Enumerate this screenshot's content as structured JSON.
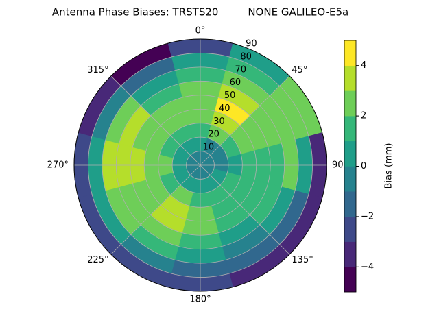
{
  "chart_data": {
    "type": "polar_contour",
    "title": "Antenna Phase Biases: TRSTS20         NONE GALILEO-E5a",
    "colorbar_label": "Bias (mm)",
    "theta_direction": "clockwise",
    "theta_zero": "N",
    "theta_bins": [
      -15,
      15,
      45,
      75,
      105,
      135,
      165,
      195,
      225,
      255,
      285,
      315,
      345
    ],
    "r_bins": [
      0,
      10,
      20,
      30,
      40,
      50,
      60,
      70,
      80,
      90
    ],
    "values": [
      [
        -0.5,
        -0.5,
        -0.5,
        -0.5,
        -0.5,
        -0.5,
        -0.5,
        -0.5,
        -0.5,
        -0.5,
        -0.5,
        -0.5
      ],
      [
        0.5,
        -0.5,
        -0.5,
        -0.5,
        0.5,
        0.5,
        0.5,
        0.5,
        0.5,
        0.5,
        0.5,
        0.5
      ],
      [
        1.5,
        2.5,
        1.5,
        0.5,
        1.5,
        1.5,
        1.5,
        2.5,
        1.5,
        2.5,
        1.5,
        1.5
      ],
      [
        2.5,
        3.5,
        2.5,
        1.5,
        1.5,
        1.5,
        2.5,
        3.5,
        2.5,
        2.5,
        2.5,
        2.5
      ],
      [
        2.5,
        4.5,
        2.5,
        1.5,
        1.5,
        1.5,
        2.5,
        3.5,
        2.5,
        3.5,
        2.5,
        2.5
      ],
      [
        2.5,
        3.5,
        2.5,
        1.5,
        1.5,
        0.5,
        1.5,
        2.5,
        2.5,
        3.5,
        3.5,
        1.5
      ],
      [
        1.5,
        2.5,
        2.5,
        2.5,
        0.5,
        -0.5,
        0.5,
        1.5,
        2.5,
        3.5,
        2.5,
        0.5
      ],
      [
        0.5,
        1.5,
        2.5,
        0.5,
        -1.5,
        -1.5,
        -1.5,
        -0.5,
        0.5,
        0.5,
        -0.5,
        -1.5
      ],
      [
        -2.5,
        0.5,
        2.5,
        -3.5,
        -3.5,
        -3.5,
        -2.5,
        -2.5,
        -2.5,
        -2.5,
        -3.5,
        -4.5
      ]
    ],
    "levels": [
      -5,
      -4,
      -3,
      -2,
      -1,
      0,
      1,
      2,
      3,
      4,
      5
    ],
    "colors": [
      "#440154",
      "#482878",
      "#3e4989",
      "#31688e",
      "#26828e",
      "#1f9e89",
      "#35b779",
      "#6ece58",
      "#b5de2b",
      "#fde725"
    ],
    "rlim": [
      0,
      90
    ],
    "rticks": [
      10,
      20,
      30,
      40,
      50,
      60,
      70,
      80,
      90
    ],
    "thetaticks": [
      {
        "value": 0,
        "label": "0°"
      },
      {
        "value": 45,
        "label": "45°"
      },
      {
        "value": 90,
        "label": "90°"
      },
      {
        "value": 135,
        "label": "135°"
      },
      {
        "value": 180,
        "label": "180°"
      },
      {
        "value": 225,
        "label": "225°"
      },
      {
        "value": 270,
        "label": "270°"
      },
      {
        "value": 315,
        "label": "315°"
      }
    ],
    "clim": [
      -5,
      5
    ],
    "cticks": [
      {
        "value": -4,
        "label": "−4"
      },
      {
        "value": -2,
        "label": "−2"
      },
      0,
      2,
      4
    ],
    "grid": true
  }
}
